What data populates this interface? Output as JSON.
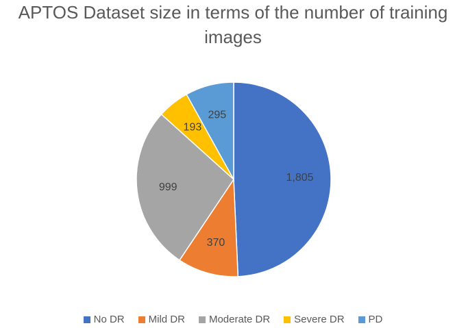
{
  "chart_data": {
    "type": "pie",
    "title_lines": [
      "APTOS Dataset size in terms of the number of training",
      "images"
    ],
    "categories": [
      "No DR",
      "Mild DR",
      "Moderate DR",
      "Severe DR",
      "PD"
    ],
    "values": [
      1805,
      370,
      999,
      193,
      295
    ],
    "data_labels": [
      "1,805",
      "370",
      "999",
      "193",
      "295"
    ],
    "colors": [
      "#4472C4",
      "#ED7D31",
      "#A5A5A5",
      "#FFC000",
      "#5B9BD5"
    ],
    "legend_position": "bottom"
  }
}
